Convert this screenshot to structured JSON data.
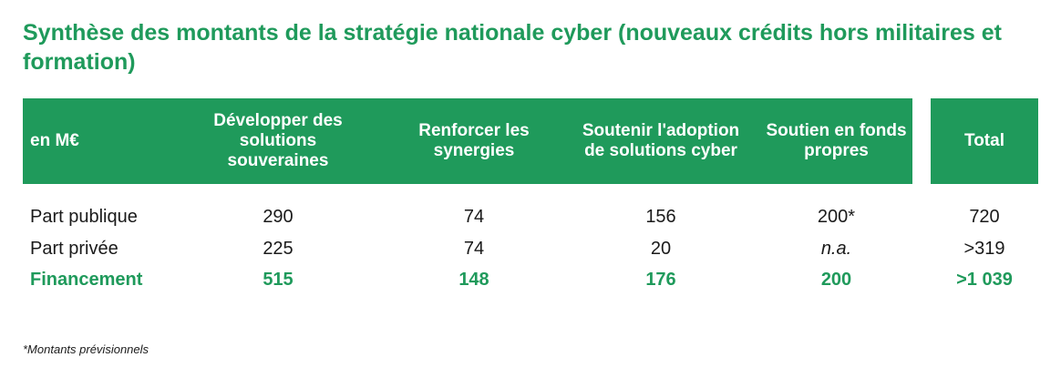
{
  "title": "Synthèse des montants de la stratégie nationale cyber (nouveaux crédits hors militaires et formation)",
  "colors": {
    "accent": "#1f9a5b",
    "text": "#1a1a1a",
    "header_text": "#ffffff"
  },
  "table": {
    "headers": {
      "unit": "en M€",
      "col1": "Développer des solutions souveraines",
      "col2": "Renforcer les synergies",
      "col3": "Soutenir l'adoption de solutions cyber",
      "col4": "Soutien en fonds propres",
      "total": "Total"
    },
    "rows": [
      {
        "label": "Part publique",
        "col1": "290",
        "col2": "74",
        "col3": "156",
        "col4": "200*",
        "total": "720"
      },
      {
        "label": "Part privée",
        "col1": "225",
        "col2": "74",
        "col3": "20",
        "col4": "n.a.",
        "total": ">319"
      },
      {
        "label": "Financement",
        "col1": "515",
        "col2": "148",
        "col3": "176",
        "col4": "200",
        "total": ">1 039"
      }
    ]
  },
  "footnote": "*Montants prévisionnels"
}
